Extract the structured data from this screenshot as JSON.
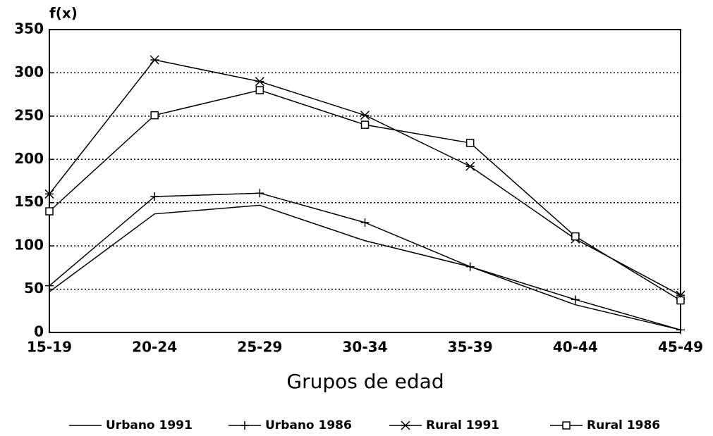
{
  "chart_data": {
    "type": "line",
    "y_label": "f(x)",
    "x_label": "Grupos de edad",
    "categories": [
      "15-19",
      "20-24",
      "25-29",
      "30-34",
      "35-39",
      "40-44",
      "45-49"
    ],
    "series": [
      {
        "name": "Urbano 1991",
        "color": "#000000",
        "marker": "none",
        "values": [
          47,
          137,
          147,
          106,
          76,
          32,
          3
        ]
      },
      {
        "name": "Urbano 1986",
        "color": "#000000",
        "marker": "plus",
        "values": [
          54,
          157,
          161,
          127,
          76,
          38,
          3
        ]
      },
      {
        "name": "Rural 1991",
        "color": "#000000",
        "marker": "star",
        "values": [
          160,
          315,
          290,
          251,
          192,
          108,
          43
        ]
      },
      {
        "name": "Rural 1986",
        "color": "#000000",
        "marker": "square",
        "values": [
          140,
          251,
          280,
          240,
          219,
          111,
          37
        ]
      }
    ],
    "ylim": [
      0,
      350
    ],
    "yticks": [
      0,
      50,
      100,
      150,
      200,
      250,
      300,
      350
    ],
    "grid": true,
    "legend": "bottom"
  }
}
